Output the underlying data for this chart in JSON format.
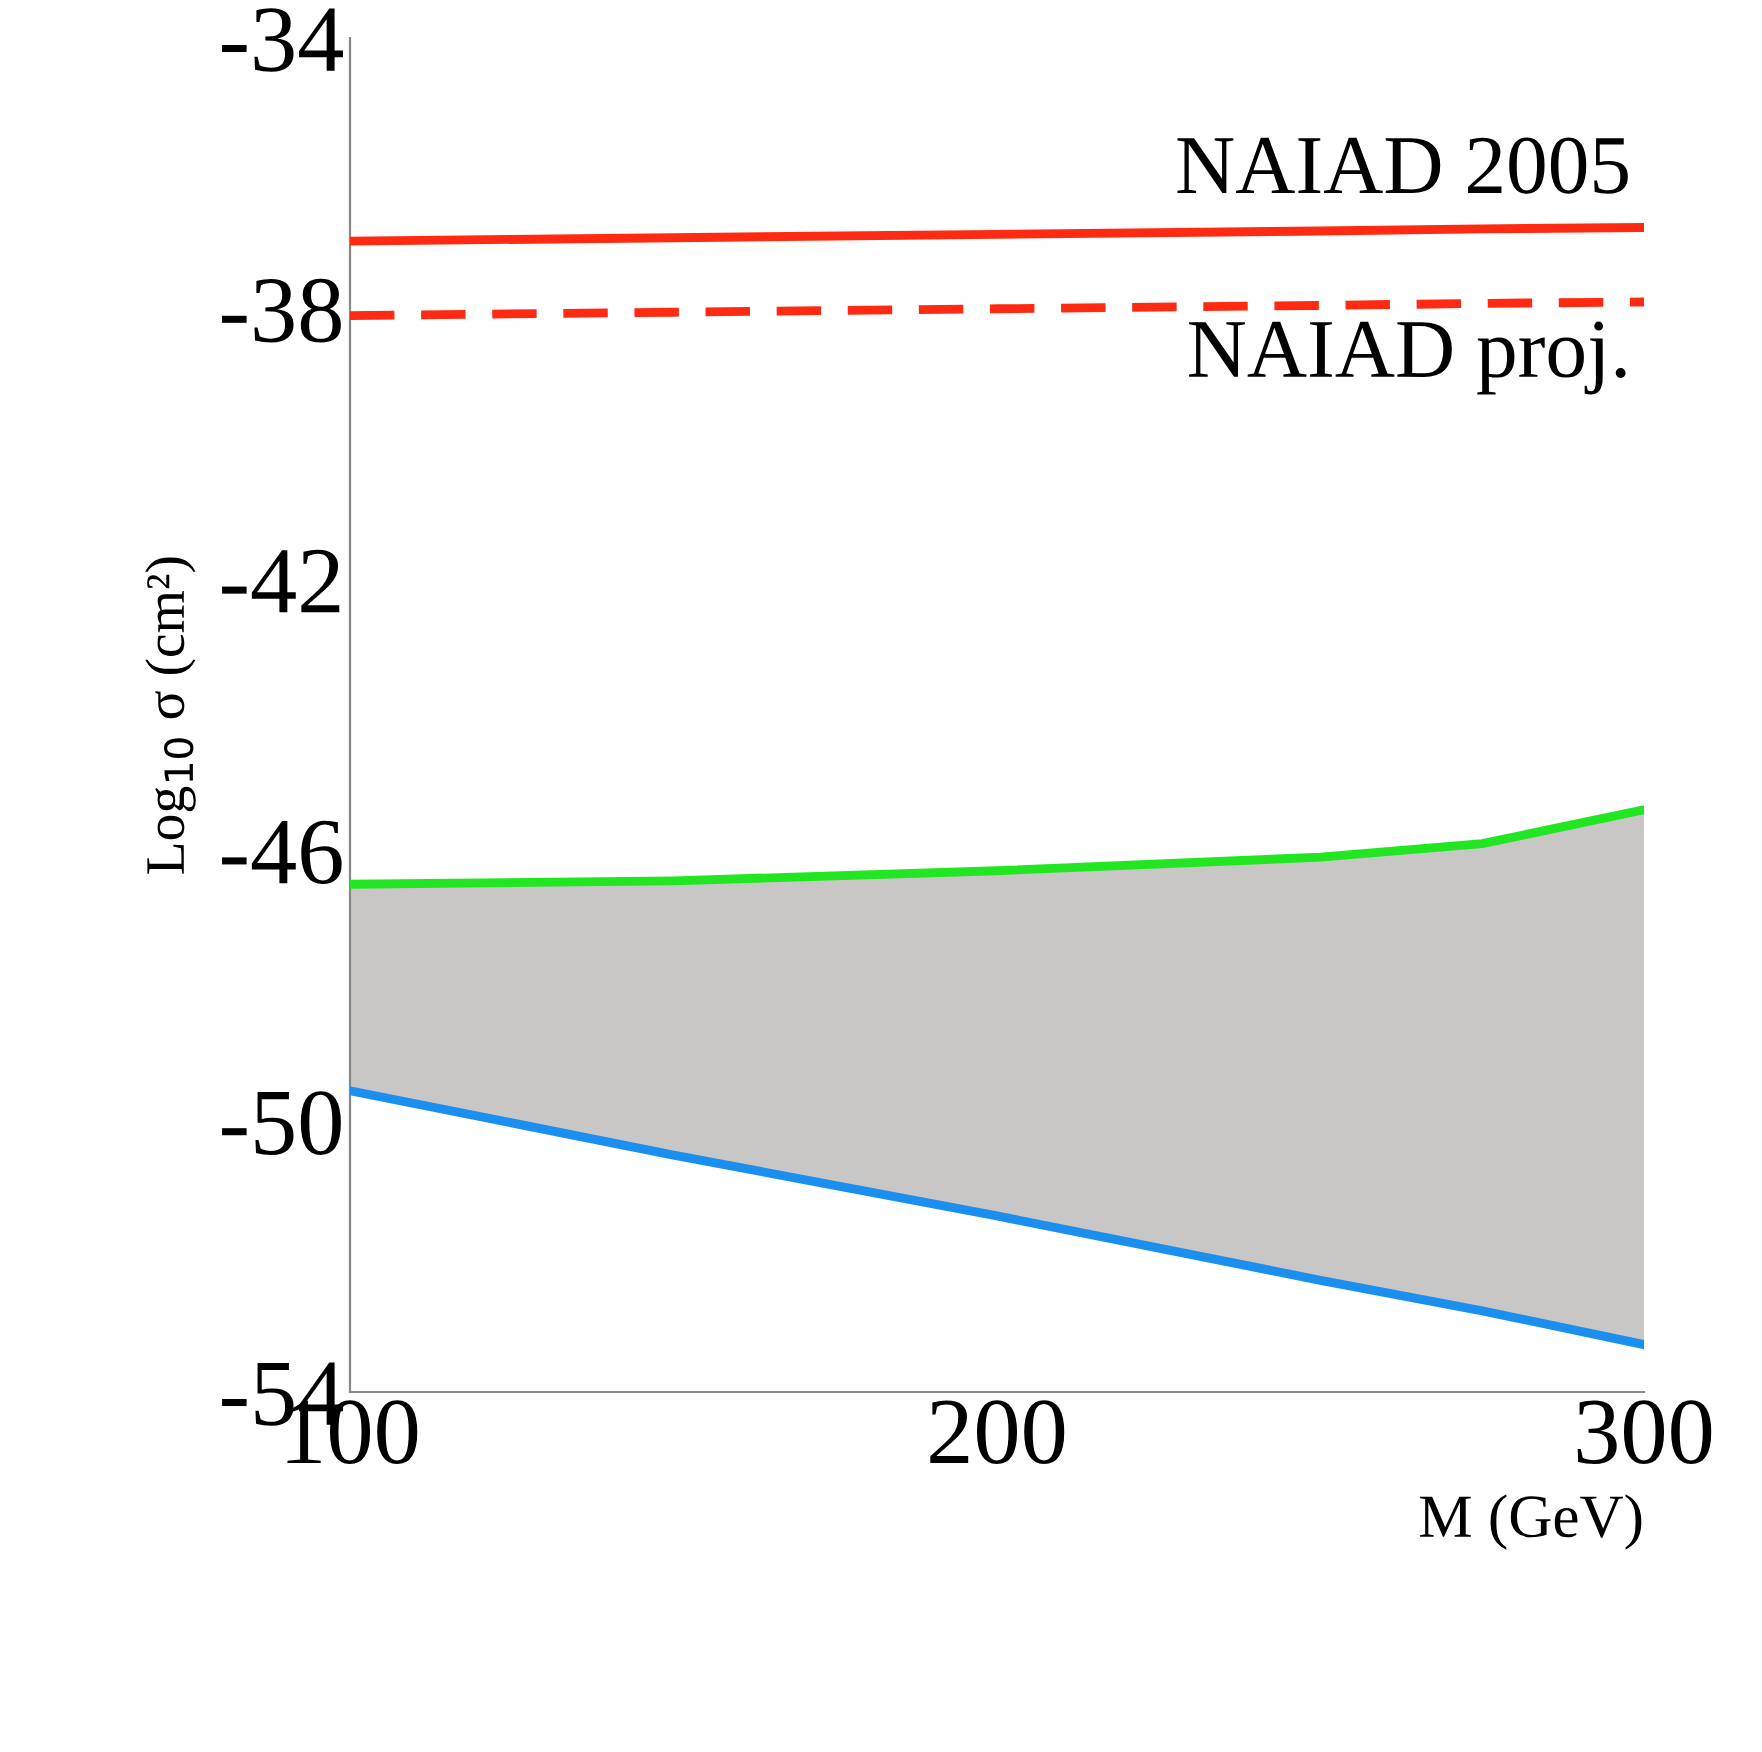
{
  "chart_data": {
    "type": "line",
    "xlabel": "M (GeV)",
    "ylabel": "Log$_{10}$ σ (cm²)",
    "x": [
      100,
      150,
      200,
      250,
      275,
      300
    ],
    "series": [
      {
        "name": "NAIAD 2005",
        "color": "#ff2a12",
        "line_style": "solid",
        "values": [
          -37.0,
          -36.95,
          -36.9,
          -36.85,
          -36.82,
          -36.8
        ]
      },
      {
        "name": "NAIAD proj.",
        "color": "#ff2a12",
        "line_style": "dashed",
        "values": [
          -38.1,
          -38.05,
          -38.0,
          -37.95,
          -37.92,
          -37.9
        ]
      },
      {
        "color": "#22e622",
        "line_style": "solid",
        "values": [
          -46.5,
          -46.45,
          -46.3,
          -46.1,
          -45.9,
          -45.4
        ],
        "lower": [
          -49.55,
          -50.5,
          -51.4,
          -52.35,
          -52.8,
          -53.3
        ],
        "upper": [
          -46.5,
          -46.45,
          -46.3,
          -46.1,
          -45.9,
          -45.4
        ]
      },
      {
        "color": "#1a8ff0",
        "line_style": "solid",
        "values": [
          -49.55,
          -50.5,
          -51.4,
          -52.35,
          -52.8,
          -53.3
        ]
      }
    ],
    "xlim": [
      100,
      300
    ],
    "xticks": [
      100,
      200,
      300
    ],
    "ylim": [
      -54,
      -34
    ],
    "yticks": [
      -34,
      -38,
      -42,
      -46,
      -50,
      -54
    ],
    "grid": false,
    "legend": false
  }
}
